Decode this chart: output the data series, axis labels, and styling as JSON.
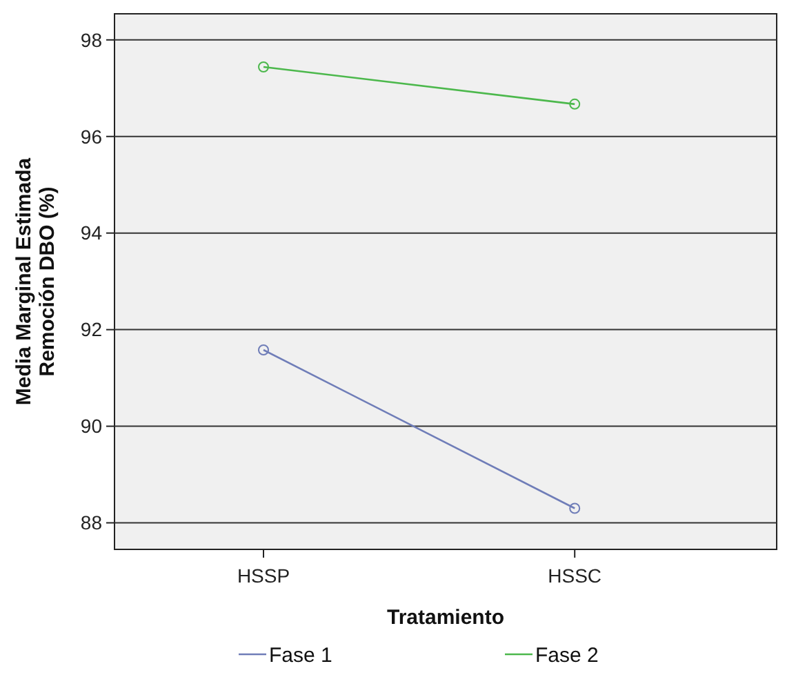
{
  "chart_data": {
    "type": "line",
    "xlabel": "Tratamiento",
    "ylabel": "Media Marginal Estimada\nRemoción DBO (%)",
    "categories": [
      "HSSP",
      "HSSC"
    ],
    "series": [
      {
        "name": "Fase 1",
        "color": "#6f7db8",
        "values": [
          91.58,
          88.3
        ]
      },
      {
        "name": "Fase 2",
        "color": "#4cb84c",
        "values": [
          97.44,
          96.67
        ]
      }
    ],
    "ylim": [
      87.45,
      98.54
    ],
    "yticks": [
      88,
      90,
      92,
      94,
      96,
      98
    ],
    "grid": "y",
    "legend": "bottom",
    "marker": "circle"
  }
}
